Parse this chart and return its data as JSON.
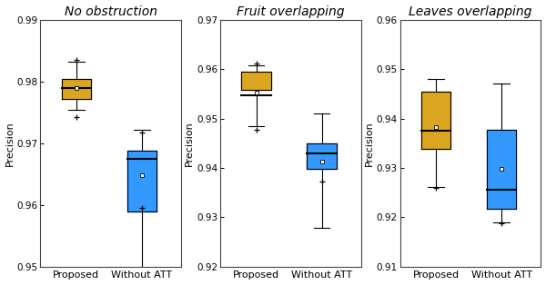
{
  "panels": [
    {
      "title": "No obstruction",
      "ylim": [
        0.95,
        0.99
      ],
      "yticks": [
        0.95,
        0.96,
        0.97,
        0.98,
        0.99
      ],
      "proposed": {
        "whislo": 0.9755,
        "q1": 0.9772,
        "med": 0.979,
        "q3": 0.9805,
        "whishi": 0.9832,
        "mean": 0.9789,
        "fliers": [
          0.9742,
          0.9836
        ]
      },
      "without": {
        "whislo": 0.9473,
        "q1": 0.959,
        "med": 0.9675,
        "q3": 0.9688,
        "whishi": 0.9722,
        "mean": 0.9648,
        "fliers": [
          0.9595,
          0.9718
        ]
      }
    },
    {
      "title": "Fruit overlapping",
      "ylim": [
        0.92,
        0.97
      ],
      "yticks": [
        0.92,
        0.93,
        0.94,
        0.95,
        0.96,
        0.97
      ],
      "proposed": {
        "whislo": 0.9485,
        "q1": 0.9558,
        "med": 0.9548,
        "q3": 0.9595,
        "whishi": 0.9608,
        "mean": 0.9553,
        "fliers": [
          0.9478,
          0.9612
        ]
      },
      "without": {
        "whislo": 0.9278,
        "q1": 0.9398,
        "med": 0.943,
        "q3": 0.945,
        "whishi": 0.951,
        "mean": 0.9412,
        "fliers": [
          0.9373
        ]
      }
    },
    {
      "title": "Leaves overlapping",
      "ylim": [
        0.91,
        0.96
      ],
      "yticks": [
        0.91,
        0.92,
        0.93,
        0.94,
        0.95,
        0.96
      ],
      "proposed": {
        "whislo": 0.9262,
        "q1": 0.9338,
        "med": 0.9375,
        "q3": 0.9455,
        "whishi": 0.948,
        "mean": 0.9383,
        "fliers": [
          0.926
        ]
      },
      "without": {
        "whislo": 0.919,
        "q1": 0.9218,
        "med": 0.9255,
        "q3": 0.9378,
        "whishi": 0.9472,
        "mean": 0.9298,
        "fliers": [
          0.9188
        ]
      }
    }
  ],
  "color_proposed": "#DAA520",
  "color_without": "#3399FF",
  "xlabel_proposed": "Proposed",
  "xlabel_without": "Without ATT",
  "ylabel": "Precision",
  "title_fontsize": 10,
  "label_fontsize": 8,
  "tick_fontsize": 7.5
}
